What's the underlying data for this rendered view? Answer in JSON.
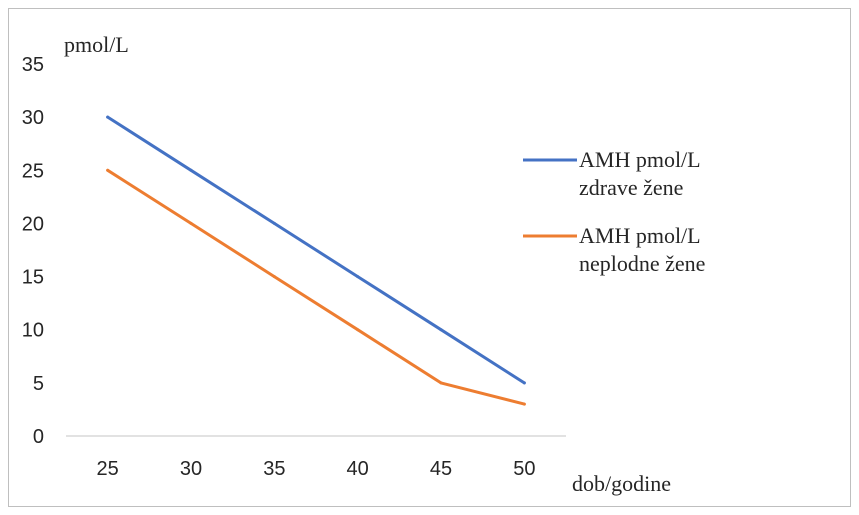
{
  "chart_data": {
    "type": "line",
    "x": [
      25,
      30,
      35,
      40,
      45,
      50
    ],
    "series": [
      {
        "name": "AMH pmol/L zdrave žene",
        "name_lines": [
          "AMH pmol/L",
          "zdrave žene"
        ],
        "color": "#4472c4",
        "values": [
          30,
          25,
          20,
          15,
          10,
          5
        ]
      },
      {
        "name": "AMH pmol/L neplodne žene",
        "name_lines": [
          "AMH pmol/L",
          "neplodne žene"
        ],
        "color": "#ed7d31",
        "values": [
          25,
          20,
          15,
          10,
          5,
          3
        ]
      }
    ],
    "ylabel": "pmol/L",
    "xlabel": "dob/godine",
    "ylim": [
      0,
      35
    ],
    "yticks": [
      0,
      5,
      10,
      15,
      20,
      25,
      30,
      35
    ],
    "grid": false,
    "legend_position": "right"
  }
}
